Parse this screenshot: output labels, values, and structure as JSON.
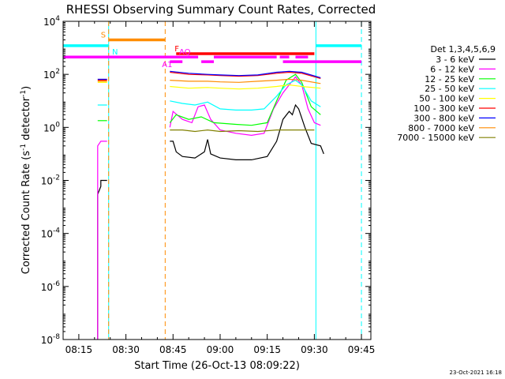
{
  "chart_data": {
    "type": "line",
    "title": "RHESSI Observing Summary Count Rates, Corrected",
    "xlabel": "Start Time (26-Oct-13 08:09:22)",
    "ylabel": "Corrected Count Rate (s⁻¹ detector⁻¹)",
    "ylabel_main": "Corrected Count Rate (s",
    "ylabel_sup1": "-1",
    "ylabel_mid": " detector",
    "ylabel_sup2": "-1",
    "ylabel_end": ")",
    "x_unit": "UT time",
    "xlim": [
      "08:10",
      "09:48"
    ],
    "x_ticks": [
      "08:15",
      "08:30",
      "08:45",
      "09:00",
      "09:15",
      "09:30",
      "09:45"
    ],
    "y_scale": "log",
    "ylim": [
      1e-08,
      10000.0
    ],
    "y_ticks": [
      {
        "value": 10000.0,
        "base": "10",
        "exp": "4"
      },
      {
        "value": 100.0,
        "base": "10",
        "exp": "2"
      },
      {
        "value": 1.0,
        "base": "10",
        "exp": "0"
      },
      {
        "value": 0.01,
        "base": "10",
        "exp": "-2"
      },
      {
        "value": 0.0001,
        "base": "10",
        "exp": "-4"
      },
      {
        "value": 1e-06,
        "base": "10",
        "exp": "-6"
      },
      {
        "value": 1e-08,
        "base": "10",
        "exp": "-8"
      }
    ],
    "legend_header": "Det 1,3,4,5,6,9",
    "legend_position": "right",
    "series": [
      {
        "name": "3 - 6 keV",
        "color": "#000000",
        "segments": [
          [
            [
              "08:21",
              1e-08
            ],
            [
              "08:21",
              0.003
            ],
            [
              "08:22",
              0.006
            ],
            [
              "08:22",
              0.01
            ],
            [
              "08:24",
              0.01
            ]
          ],
          [
            [
              "08:44",
              0.3
            ],
            [
              "08:45",
              0.3
            ],
            [
              "08:46",
              0.12
            ],
            [
              "08:48",
              0.08
            ],
            [
              "08:52",
              0.07
            ],
            [
              "08:55",
              0.12
            ],
            [
              "08:56",
              0.35
            ],
            [
              "08:57",
              0.1
            ],
            [
              "09:00",
              0.07
            ],
            [
              "09:05",
              0.06
            ],
            [
              "09:10",
              0.06
            ],
            [
              "09:15",
              0.08
            ],
            [
              "09:18",
              0.3
            ],
            [
              "09:20",
              2
            ],
            [
              "09:22",
              4
            ],
            [
              "09:23",
              3
            ],
            [
              "09:24",
              7
            ],
            [
              "09:25",
              5
            ],
            [
              "09:27",
              1
            ],
            [
              "09:29",
              0.25
            ],
            [
              "09:32",
              0.2
            ],
            [
              "09:33",
              0.1
            ]
          ]
        ]
      },
      {
        "name": "6 - 12 keV",
        "color": "#ff00ff",
        "segments": [
          [
            [
              "08:21",
              1e-08
            ],
            [
              "08:21",
              0.2
            ],
            [
              "08:22",
              0.3
            ],
            [
              "08:24",
              0.3
            ]
          ],
          [
            [
              "08:44",
              1
            ],
            [
              "08:45",
              4
            ],
            [
              "08:48",
              2
            ],
            [
              "08:51",
              1.5
            ],
            [
              "08:53",
              6
            ],
            [
              "08:55",
              7
            ],
            [
              "08:57",
              2
            ],
            [
              "09:00",
              0.8
            ],
            [
              "09:05",
              0.6
            ],
            [
              "09:10",
              0.5
            ],
            [
              "09:14",
              0.6
            ],
            [
              "09:17",
              5
            ],
            [
              "09:20",
              20
            ],
            [
              "09:22",
              40
            ],
            [
              "09:24",
              80
            ],
            [
              "09:26",
              40
            ],
            [
              "09:28",
              5
            ],
            [
              "09:30",
              1.5
            ],
            [
              "09:32",
              1.2
            ]
          ]
        ]
      },
      {
        "name": "12 - 25 keV",
        "color": "#00ff00",
        "segments": [
          [
            [
              "08:21",
              1.8
            ],
            [
              "08:24",
              1.8
            ]
          ],
          [
            [
              "08:44",
              1.5
            ],
            [
              "08:46",
              3
            ],
            [
              "08:50",
              2
            ],
            [
              "08:54",
              2.5
            ],
            [
              "08:58",
              1.5
            ],
            [
              "09:05",
              1.3
            ],
            [
              "09:10",
              1.2
            ],
            [
              "09:15",
              1.5
            ],
            [
              "09:18",
              10
            ],
            [
              "09:21",
              60
            ],
            [
              "09:24",
              100
            ],
            [
              "09:26",
              50
            ],
            [
              "09:29",
              6
            ],
            [
              "09:32",
              3
            ]
          ]
        ]
      },
      {
        "name": "25 - 50 keV",
        "color": "#00ffff",
        "segments": [
          [
            [
              "08:21",
              7
            ],
            [
              "08:24",
              7
            ]
          ],
          [
            [
              "08:44",
              10
            ],
            [
              "08:48",
              8
            ],
            [
              "08:52",
              7
            ],
            [
              "08:56",
              9
            ],
            [
              "09:00",
              5
            ],
            [
              "09:05",
              4.5
            ],
            [
              "09:10",
              4.5
            ],
            [
              "09:14",
              5
            ],
            [
              "09:18",
              15
            ],
            [
              "09:21",
              40
            ],
            [
              "09:24",
              60
            ],
            [
              "09:26",
              40
            ],
            [
              "09:29",
              10
            ],
            [
              "09:32",
              6
            ]
          ]
        ]
      },
      {
        "name": "50 - 100 keV",
        "color": "#ffff00",
        "segments": [
          [
            [
              "08:21",
              50
            ],
            [
              "08:24",
              50
            ]
          ],
          [
            [
              "08:44",
              35
            ],
            [
              "08:50",
              30
            ],
            [
              "08:56",
              32
            ],
            [
              "09:00",
              30
            ],
            [
              "09:06",
              28
            ],
            [
              "09:12",
              30
            ],
            [
              "09:18",
              35
            ],
            [
              "09:22",
              40
            ],
            [
              "09:26",
              35
            ],
            [
              "09:32",
              30
            ]
          ]
        ]
      },
      {
        "name": "100 - 300 keV",
        "color": "#ff0000",
        "segments": [
          [
            [
              "08:21",
              60
            ],
            [
              "08:24",
              60
            ]
          ],
          [
            [
              "08:44",
              120
            ],
            [
              "08:50",
              100
            ],
            [
              "08:56",
              95
            ],
            [
              "09:00",
              90
            ],
            [
              "09:06",
              85
            ],
            [
              "09:12",
              90
            ],
            [
              "09:18",
              110
            ],
            [
              "09:22",
              120
            ],
            [
              "09:26",
              110
            ],
            [
              "09:32",
              70
            ]
          ]
        ]
      },
      {
        "name": "300 - 800 keV",
        "color": "#0000ff",
        "segments": [
          [
            [
              "08:21",
              65
            ],
            [
              "08:24",
              65
            ]
          ],
          [
            [
              "08:44",
              130
            ],
            [
              "08:50",
              110
            ],
            [
              "08:56",
              100
            ],
            [
              "09:00",
              95
            ],
            [
              "09:06",
              90
            ],
            [
              "09:12",
              95
            ],
            [
              "09:18",
              120
            ],
            [
              "09:22",
              130
            ],
            [
              "09:26",
              120
            ],
            [
              "09:32",
              75
            ]
          ]
        ]
      },
      {
        "name": "800 - 7000 keV",
        "color": "#ff8c00",
        "segments": [
          [
            [
              "08:21",
              55
            ],
            [
              "08:24",
              55
            ]
          ],
          [
            [
              "08:44",
              60
            ],
            [
              "08:50",
              55
            ],
            [
              "08:56",
              55
            ],
            [
              "09:00",
              52
            ],
            [
              "09:06",
              50
            ],
            [
              "09:12",
              55
            ],
            [
              "09:18",
              60
            ],
            [
              "09:22",
              65
            ],
            [
              "09:26",
              60
            ],
            [
              "09:32",
              45
            ]
          ]
        ]
      },
      {
        "name": "7000 - 15000 keV",
        "color": "#808000",
        "segments": [
          [
            [
              "08:44",
              0.8
            ],
            [
              "08:48",
              0.8
            ],
            [
              "08:52",
              0.7
            ],
            [
              "08:56",
              0.8
            ],
            [
              "09:00",
              0.7
            ],
            [
              "09:06",
              0.75
            ],
            [
              "09:12",
              0.7
            ],
            [
              "09:18",
              0.8
            ],
            [
              "09:24",
              0.8
            ],
            [
              "09:30",
              0.8
            ]
          ]
        ]
      }
    ],
    "flag_bars": [
      {
        "label": "S",
        "color": "#ff8c00",
        "level": 2000,
        "start": "08:24.5",
        "end": "08:42.5"
      },
      {
        "label": "N",
        "color": "#00ffff",
        "level": 1200,
        "start": "08:10",
        "end": "08:24.5"
      },
      {
        "label": "",
        "color": "#00ffff",
        "level": 1200,
        "start": "09:30.5",
        "end": "09:45"
      },
      {
        "label": "F",
        "color": "#ff0000",
        "level": 600,
        "start": "08:46",
        "end": "09:30"
      },
      {
        "label": "AQ",
        "color": "#ff00ff",
        "level": 450,
        "start": "08:10",
        "end": "08:53"
      },
      {
        "label": "",
        "color": "#ff00ff",
        "level": 450,
        "start": "08:58",
        "end": "09:18"
      },
      {
        "label": "",
        "color": "#ff00ff",
        "level": 450,
        "start": "09:19",
        "end": "09:22"
      },
      {
        "label": "",
        "color": "#ff00ff",
        "level": 450,
        "start": "09:24",
        "end": "09:28"
      },
      {
        "label": "A1",
        "color": "#ff00ff",
        "level": 300,
        "start": "08:44",
        "end": "08:48"
      },
      {
        "label": "",
        "color": "#ff00ff",
        "level": 300,
        "start": "08:54",
        "end": "08:58"
      },
      {
        "label": "",
        "color": "#ff00ff",
        "level": 300,
        "start": "09:20",
        "end": "09:45"
      }
    ],
    "vertical_lines": [
      {
        "x": "08:10",
        "color": "#00ffff",
        "dashed": false
      },
      {
        "x": "08:24.5",
        "color": "#00ffff",
        "dashed": false
      },
      {
        "x": "08:24.5",
        "color": "#ff8c00",
        "dashed": true
      },
      {
        "x": "08:42.5",
        "color": "#ff8c00",
        "dashed": true
      },
      {
        "x": "09:30.5",
        "color": "#00ffff",
        "dashed": false
      },
      {
        "x": "09:45",
        "color": "#00ffff",
        "dashed": true
      }
    ]
  },
  "footer": {
    "date": "23-Oct-2021 16:18"
  }
}
